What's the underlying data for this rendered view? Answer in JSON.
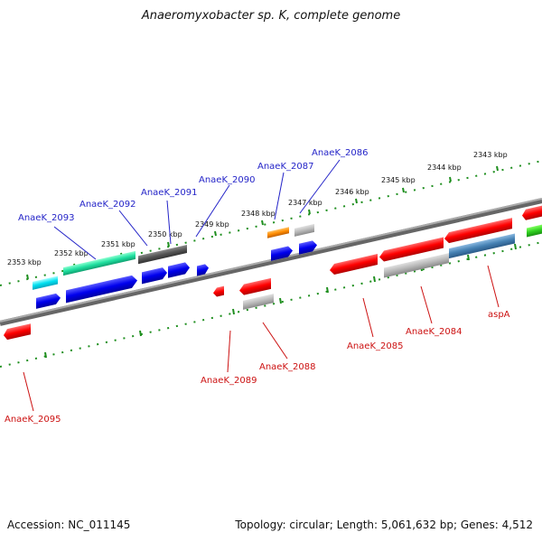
{
  "title": "Anaeromyxobacter sp. K, complete genome",
  "footer": {
    "accession": "Accession: NC_011145",
    "summary": "Topology: circular; Length: 5,061,632 bp; Genes: 4,512"
  },
  "kbp_ticks": [
    "2353 kbp",
    "2352 kbp",
    "2351 kbp",
    "2350 kbp",
    "2349 kbp",
    "2348 kbp",
    "2347 kbp",
    "2346 kbp",
    "2345 kbp",
    "2344 kbp",
    "2343 kbp"
  ],
  "genes_top": [
    "AnaeK_2093",
    "AnaeK_2092",
    "AnaeK_2091",
    "AnaeK_2090",
    "AnaeK_2087",
    "AnaeK_2086"
  ],
  "genes_bottom": [
    "AnaeK_2095",
    "AnaeK_2089",
    "AnaeK_2088",
    "AnaeK_2085",
    "AnaeK_2084",
    "aspA"
  ],
  "colors": {
    "forward_label": "#2424c8",
    "reverse_label": "#cc1111",
    "tick": "#228b22",
    "backbone": "#777777"
  }
}
